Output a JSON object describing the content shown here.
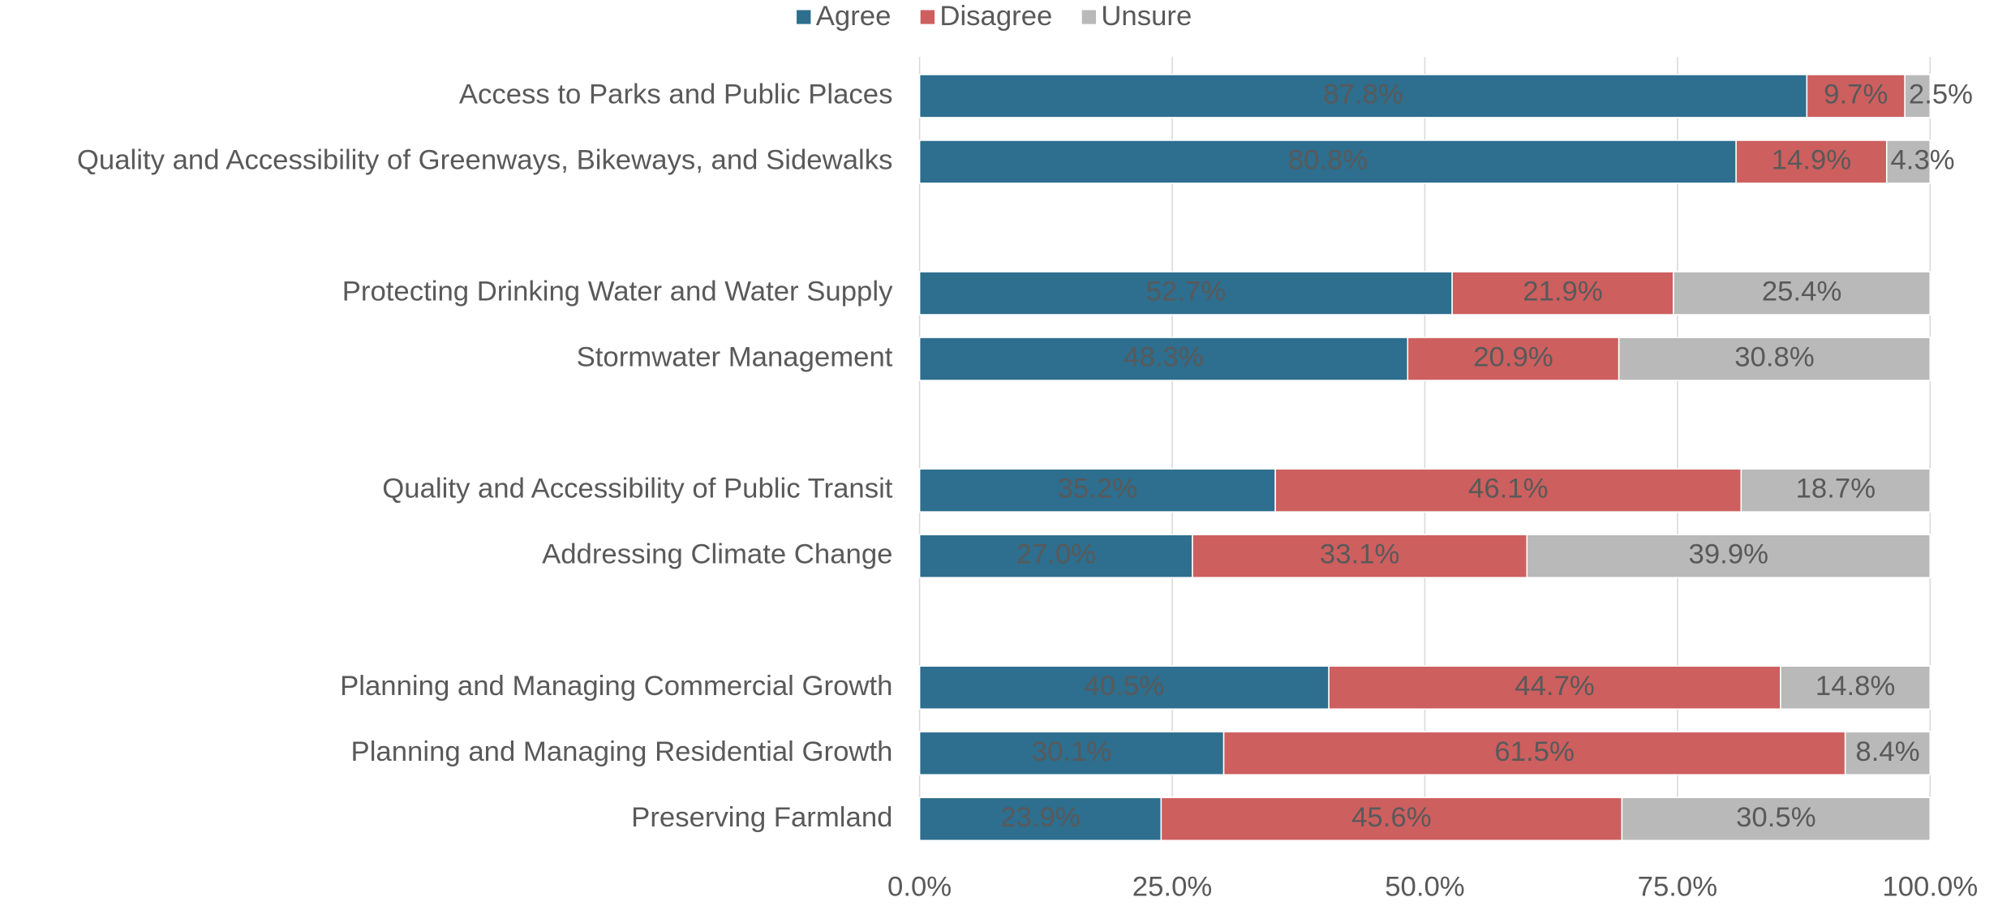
{
  "chart_data": {
    "type": "stacked-barh",
    "categories": [
      "Access to Parks and Public Places",
      "Quality and Accessibility of Greenways, Bikeways, and Sidewalks",
      null,
      "Protecting Drinking Water and Water Supply",
      "Stormwater Management",
      null,
      "Quality and Accessibility of Public Transit",
      "Addressing Climate Change",
      null,
      "Planning and Managing Commercial Growth",
      "Planning and Managing Residential Growth",
      "Preserving Farmland"
    ],
    "series": [
      {
        "name": "Agree",
        "color": "#2e6e8e",
        "label_color": "#ffffff",
        "values": [
          87.8,
          80.8,
          null,
          52.7,
          48.3,
          null,
          35.2,
          27.0,
          null,
          40.5,
          30.1,
          23.9
        ],
        "value_labels": [
          "87.8%",
          "80.8%",
          null,
          "52.7%",
          "48.3%",
          null,
          "35.2%",
          "27.0%",
          null,
          "40.5%",
          "30.1%",
          "23.9%"
        ]
      },
      {
        "name": "Disagree",
        "color": "#cd5f5f",
        "label_color": "#ffffff",
        "values": [
          9.7,
          14.9,
          null,
          21.9,
          20.9,
          null,
          46.1,
          33.1,
          null,
          44.7,
          61.5,
          45.6
        ],
        "value_labels": [
          "9.7%",
          "14.9%",
          null,
          "21.9%",
          "20.9%",
          null,
          "46.1%",
          "33.1%",
          null,
          "44.7%",
          "61.5%",
          "45.6%"
        ]
      },
      {
        "name": "Unsure",
        "color": "#b9b9b9",
        "label_color": "#595959",
        "values": [
          2.5,
          4.3,
          null,
          25.4,
          30.8,
          null,
          18.7,
          39.9,
          null,
          14.8,
          8.4,
          30.5
        ],
        "value_labels": [
          "2.5%",
          "4.3%",
          null,
          "25.4%",
          "30.8%",
          null,
          "18.7%",
          "39.9%",
          null,
          "14.8%",
          "8.4%",
          "30.5%"
        ]
      }
    ],
    "xlim": [
      0,
      100
    ],
    "xticks": [
      {
        "value": 0,
        "label": "0.0%"
      },
      {
        "value": 25,
        "label": "25.0%"
      },
      {
        "value": 50,
        "label": "50.0%"
      },
      {
        "value": 75,
        "label": "75.0%"
      },
      {
        "value": 100,
        "label": "100.0%"
      }
    ],
    "grid": true,
    "legend": "top"
  }
}
